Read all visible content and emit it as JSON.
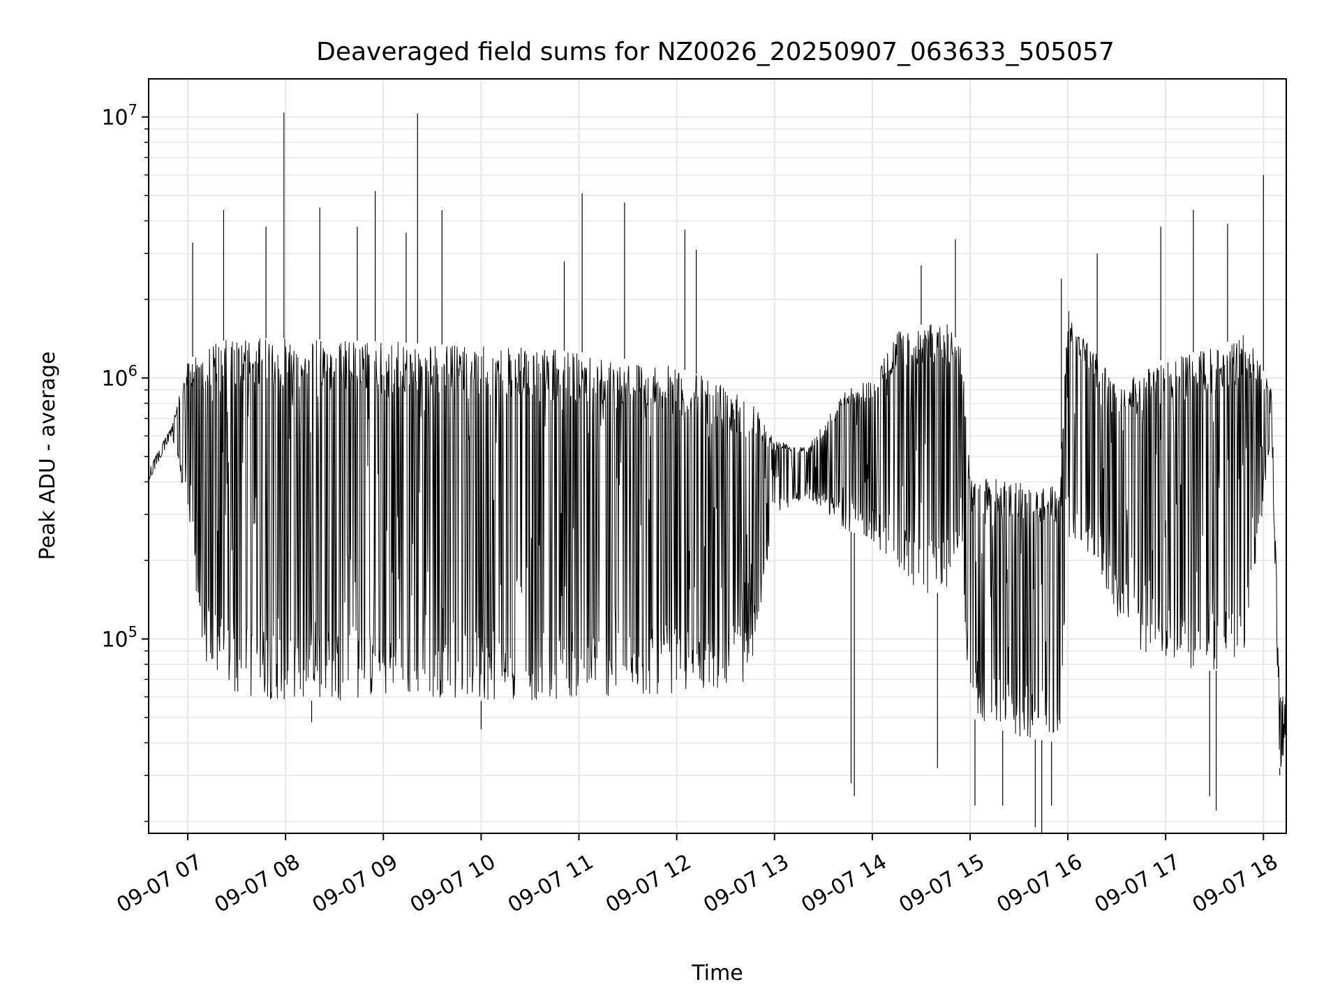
{
  "chart_data": {
    "type": "line",
    "title": "Deaveraged field sums for NZ0026_20250907_063633_505057",
    "xlabel": "Time",
    "ylabel": "Peak ADU - average",
    "yscale": "log",
    "ylim": [
      18000,
      14000000
    ],
    "xlim": [
      "2025-09-07 06:36",
      "2025-09-07 18:14"
    ],
    "grid": true,
    "legend": "none",
    "line_color": "#000000",
    "x_ticks": [
      {
        "value": "2025-09-07 07:00",
        "label": "09-07 07"
      },
      {
        "value": "2025-09-07 08:00",
        "label": "09-07 08"
      },
      {
        "value": "2025-09-07 09:00",
        "label": "09-07 09"
      },
      {
        "value": "2025-09-07 10:00",
        "label": "09-07 10"
      },
      {
        "value": "2025-09-07 11:00",
        "label": "09-07 11"
      },
      {
        "value": "2025-09-07 12:00",
        "label": "09-07 12"
      },
      {
        "value": "2025-09-07 13:00",
        "label": "09-07 13"
      },
      {
        "value": "2025-09-07 14:00",
        "label": "09-07 14"
      },
      {
        "value": "2025-09-07 15:00",
        "label": "09-07 15"
      },
      {
        "value": "2025-09-07 16:00",
        "label": "09-07 16"
      },
      {
        "value": "2025-09-07 17:00",
        "label": "09-07 17"
      },
      {
        "value": "2025-09-07 18:00",
        "label": "09-07 18"
      }
    ],
    "y_ticks": [
      {
        "value": 100000,
        "base": "10",
        "exp": "5"
      },
      {
        "value": 1000000,
        "base": "10",
        "exp": "6"
      },
      {
        "value": 10000000,
        "base": "10",
        "exp": "7"
      }
    ],
    "series_profile": {
      "x": [
        "2025-09-07 06:36",
        "2025-09-07 06:50",
        "2025-09-07 07:00",
        "2025-09-07 07:10",
        "2025-09-07 07:30",
        "2025-09-07 08:00",
        "2025-09-07 08:30",
        "2025-09-07 09:00",
        "2025-09-07 09:30",
        "2025-09-07 10:00",
        "2025-09-07 10:30",
        "2025-09-07 11:00",
        "2025-09-07 11:30",
        "2025-09-07 12:00",
        "2025-09-07 12:30",
        "2025-09-07 12:45",
        "2025-09-07 13:00",
        "2025-09-07 13:20",
        "2025-09-07 13:45",
        "2025-09-07 14:00",
        "2025-09-07 14:15",
        "2025-09-07 14:30",
        "2025-09-07 14:45",
        "2025-09-07 14:55",
        "2025-09-07 15:00",
        "2025-09-07 15:30",
        "2025-09-07 15:55",
        "2025-09-07 16:00",
        "2025-09-07 16:15",
        "2025-09-07 16:30",
        "2025-09-07 16:45",
        "2025-09-07 17:00",
        "2025-09-07 17:30",
        "2025-09-07 17:50",
        "2025-09-07 18:05",
        "2025-09-07 18:10",
        "2025-09-07 18:14"
      ],
      "y_upper": [
        450000,
        650000,
        1150000,
        1350000,
        1420000,
        1420000,
        1400000,
        1380000,
        1350000,
        1320000,
        1300000,
        1260000,
        1180000,
        1100000,
        950000,
        860000,
        580000,
        550000,
        920000,
        1000000,
        1500000,
        1600000,
        1650000,
        1300000,
        420000,
        400000,
        390000,
        1900000,
        1300000,
        950000,
        1050000,
        1200000,
        1300000,
        1500000,
        900000,
        60000,
        60000
      ],
      "y_lower": [
        400000,
        600000,
        300000,
        80000,
        60000,
        58000,
        58000,
        60000,
        60000,
        58000,
        58000,
        60000,
        60000,
        62000,
        65000,
        70000,
        300000,
        350000,
        260000,
        240000,
        180000,
        150000,
        150000,
        200000,
        50000,
        42000,
        40000,
        250000,
        200000,
        120000,
        90000,
        80000,
        75000,
        90000,
        650000,
        32000,
        32000
      ]
    },
    "spikes": [
      {
        "x": "2025-09-07 07:03",
        "y": 3300000
      },
      {
        "x": "2025-09-07 07:22",
        "y": 4400000
      },
      {
        "x": "2025-09-07 07:48",
        "y": 3800000
      },
      {
        "x": "2025-09-07 07:59",
        "y": 10400000
      },
      {
        "x": "2025-09-07 08:21",
        "y": 4500000
      },
      {
        "x": "2025-09-07 08:44",
        "y": 3800000
      },
      {
        "x": "2025-09-07 08:55",
        "y": 5200000
      },
      {
        "x": "2025-09-07 09:14",
        "y": 3600000
      },
      {
        "x": "2025-09-07 09:21",
        "y": 10300000
      },
      {
        "x": "2025-09-07 09:36",
        "y": 4400000
      },
      {
        "x": "2025-09-07 10:51",
        "y": 2800000
      },
      {
        "x": "2025-09-07 11:02",
        "y": 5100000
      },
      {
        "x": "2025-09-07 11:28",
        "y": 4700000
      },
      {
        "x": "2025-09-07 12:05",
        "y": 3700000
      },
      {
        "x": "2025-09-07 12:12",
        "y": 3100000
      },
      {
        "x": "2025-09-07 14:30",
        "y": 2700000
      },
      {
        "x": "2025-09-07 14:51",
        "y": 3400000
      },
      {
        "x": "2025-09-07 15:56",
        "y": 2400000
      },
      {
        "x": "2025-09-07 16:18",
        "y": 3000000
      },
      {
        "x": "2025-09-07 16:57",
        "y": 3800000
      },
      {
        "x": "2025-09-07 17:17",
        "y": 4400000
      },
      {
        "x": "2025-09-07 17:38",
        "y": 3900000
      },
      {
        "x": "2025-09-07 18:00",
        "y": 6000000
      }
    ],
    "dips": [
      {
        "x": "2025-09-07 08:16",
        "y": 48000
      },
      {
        "x": "2025-09-07 10:00",
        "y": 45000
      },
      {
        "x": "2025-09-07 13:47",
        "y": 28000
      },
      {
        "x": "2025-09-07 13:49",
        "y": 25000
      },
      {
        "x": "2025-09-07 14:40",
        "y": 32000
      },
      {
        "x": "2025-09-07 15:03",
        "y": 23000
      },
      {
        "x": "2025-09-07 15:20",
        "y": 23000
      },
      {
        "x": "2025-09-07 15:40",
        "y": 19000
      },
      {
        "x": "2025-09-07 15:44",
        "y": 18000
      },
      {
        "x": "2025-09-07 15:50",
        "y": 23000
      },
      {
        "x": "2025-09-07 17:27",
        "y": 25000
      },
      {
        "x": "2025-09-07 17:31",
        "y": 22000
      },
      {
        "x": "2025-09-07 18:10",
        "y": 30000
      }
    ]
  }
}
